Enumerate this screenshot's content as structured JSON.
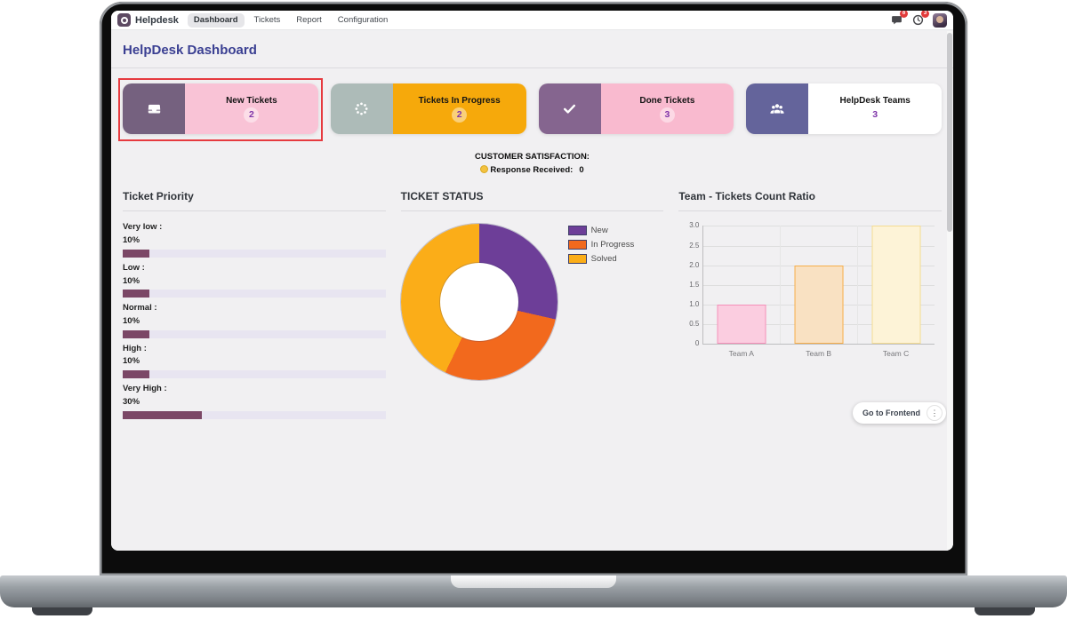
{
  "navbar": {
    "brand": "Helpdesk",
    "app_icon": "helpdesk-app-icon",
    "menu": [
      {
        "label": "Dashboard",
        "active": true
      },
      {
        "label": "Tickets",
        "active": false
      },
      {
        "label": "Report",
        "active": false
      },
      {
        "label": "Configuration",
        "active": false
      }
    ],
    "messages_icon": "messages-icon",
    "messages_badge": "6",
    "activities_icon": "activity-clock-icon",
    "activities_badge": "3",
    "avatar": "user-avatar"
  },
  "page": {
    "title": "HelpDesk Dashboard"
  },
  "kpi_cards": [
    {
      "label": "New Tickets",
      "value": "2",
      "icon": "inbox-icon",
      "icon_bg": "#75617F",
      "body_bg": "#F9C3D6",
      "highlighted": true
    },
    {
      "label": "Tickets In Progress",
      "value": "2",
      "icon": "spinner-icon",
      "icon_bg": "#ADBBB8",
      "body_bg": "#F6A90B",
      "highlighted": false
    },
    {
      "label": "Done Tickets",
      "value": "3",
      "icon": "check-icon",
      "icon_bg": "#85658F",
      "body_bg": "#F9BACF",
      "highlighted": false
    },
    {
      "label": "HelpDesk Teams",
      "value": "3",
      "icon": "team-icon",
      "icon_bg": "#64649B",
      "body_bg": "#FFFFFF",
      "highlighted": false
    }
  ],
  "satisfaction": {
    "line1": "CUSTOMER SATISFACTION:",
    "emoji_icon": "neutral-face-emoji-icon",
    "line2_label": "Response Received:",
    "line2_value": "0"
  },
  "panels": {
    "priority": {
      "title": "Ticket Priority",
      "rows": [
        {
          "label": "Very low :",
          "percent": "10%",
          "value": 10
        },
        {
          "label": "Low :",
          "percent": "10%",
          "value": 10
        },
        {
          "label": "Normal :",
          "percent": "10%",
          "value": 10
        },
        {
          "label": "High :",
          "percent": "10%",
          "value": 10
        },
        {
          "label": "Very High :",
          "percent": "30%",
          "value": 30
        }
      ]
    },
    "status": {
      "title": "TICKET STATUS"
    },
    "team": {
      "title": "Team - Tickets Count Ratio"
    }
  },
  "chart_data": [
    {
      "type": "bar",
      "orientation": "horizontal",
      "title": "Ticket Priority",
      "categories": [
        "Very low",
        "Low",
        "Normal",
        "High",
        "Very High"
      ],
      "values": [
        10,
        10,
        10,
        10,
        30
      ],
      "unit": "%",
      "xlim": [
        0,
        100
      ],
      "bar_color": "#7B4766",
      "track_color": "#E8E5F1",
      "grid": false
    },
    {
      "type": "pie",
      "donut": true,
      "title": "TICKET STATUS",
      "labels": [
        "New",
        "In Progress",
        "Solved"
      ],
      "values": [
        2,
        2,
        3
      ],
      "colors": [
        "#6D3E98",
        "#F2691D",
        "#FBAD18"
      ],
      "legend_position": "right",
      "start_angle_deg": 0,
      "direction": "clockwise"
    },
    {
      "type": "bar",
      "title": "Team - Tickets Count Ratio",
      "categories": [
        "Team A",
        "Team B",
        "Team C"
      ],
      "values": [
        1,
        2,
        3
      ],
      "ylim": [
        0,
        3
      ],
      "ytick_step": 0.5,
      "ytick_labels": [
        "0",
        "0.5",
        "1.0",
        "1.5",
        "2.0",
        "2.5",
        "3.0"
      ],
      "fill_colors": [
        "#FBCDE0",
        "#F9E1C2",
        "#FDF3D7"
      ],
      "border_colors": [
        "#F590B9",
        "#F6AE4A",
        "#F4DC92"
      ],
      "grid": true
    }
  ],
  "footer": {
    "frontend_button": "Go to Frontend",
    "kebab_icon": "⋮"
  }
}
